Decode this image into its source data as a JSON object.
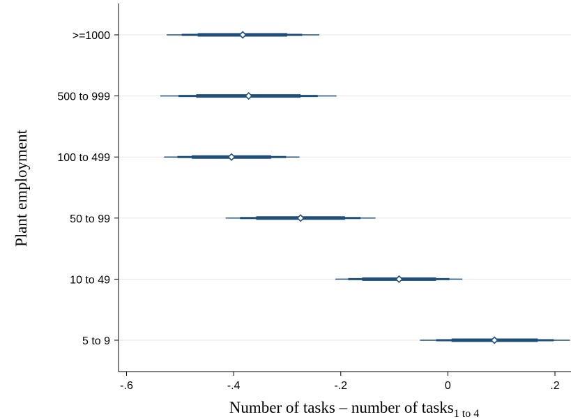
{
  "chart_data": {
    "type": "coefficient_plot",
    "xlabel": "Number of tasks – number of tasks",
    "xlabel_subscript": "1 to 4",
    "ylabel": "Plant employment",
    "xlim": [
      -0.615,
      0.23
    ],
    "x_ticks": [
      {
        "value": -0.6,
        "label": "-.6"
      },
      {
        "value": -0.4,
        "label": "-.4"
      },
      {
        "value": -0.2,
        "label": "-.2"
      },
      {
        "value": 0,
        "label": "0"
      },
      {
        "value": 0.2,
        "label": ".2"
      }
    ],
    "grid": "horizontal",
    "colors": {
      "interval": "#1f4e79",
      "gridline": "#e6e6e6",
      "marker_fill": "#ffffff"
    },
    "categories": [
      ">=1000",
      "500 to 999",
      "100 to 499",
      "50 to 99",
      "10 to 49",
      "5 to 9"
    ],
    "points": [
      {
        "category": ">=1000",
        "estimate": -0.383,
        "ci_outer": [
          -0.525,
          -0.24
        ],
        "ci_mid": [
          -0.497,
          -0.272
        ],
        "ci_inner": [
          -0.467,
          -0.3
        ]
      },
      {
        "category": "500 to 999",
        "estimate": -0.372,
        "ci_outer": [
          -0.537,
          -0.208
        ],
        "ci_mid": [
          -0.503,
          -0.243
        ],
        "ci_inner": [
          -0.47,
          -0.275
        ]
      },
      {
        "category": "100 to 499",
        "estimate": -0.404,
        "ci_outer": [
          -0.53,
          -0.277
        ],
        "ci_mid": [
          -0.505,
          -0.302
        ],
        "ci_inner": [
          -0.478,
          -0.33
        ]
      },
      {
        "category": "50 to 99",
        "estimate": -0.275,
        "ci_outer": [
          -0.415,
          -0.135
        ],
        "ci_mid": [
          -0.388,
          -0.163
        ],
        "ci_inner": [
          -0.358,
          -0.192
        ]
      },
      {
        "category": "10 to 49",
        "estimate": -0.091,
        "ci_outer": [
          -0.21,
          0.027
        ],
        "ci_mid": [
          -0.186,
          0.003
        ],
        "ci_inner": [
          -0.16,
          -0.022
        ]
      },
      {
        "category": "5 to 9",
        "estimate": 0.087,
        "ci_outer": [
          -0.052,
          0.228
        ],
        "ci_mid": [
          -0.022,
          0.198
        ],
        "ci_inner": [
          0.007,
          0.168
        ]
      }
    ]
  }
}
